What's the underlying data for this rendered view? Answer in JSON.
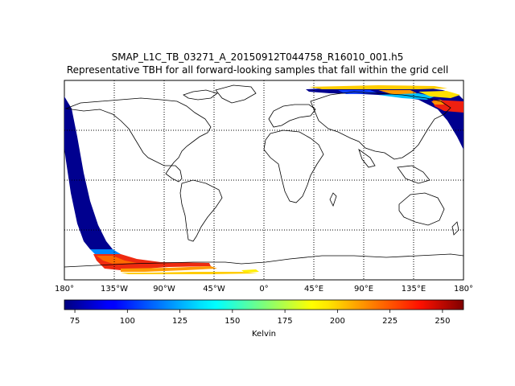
{
  "figure": {
    "title_line1": "SMAP_L1C_TB_03271_A_20150912T044758_R16010_001.h5",
    "title_line2": "Representative TBH for all forward-looking samples that fall within the grid cell"
  },
  "map": {
    "projection": "cylindrical",
    "lon_range": [
      -180,
      180
    ],
    "lat_range": [
      -90,
      90
    ],
    "gridlines": {
      "longitudes": [
        -135,
        -90,
        -45,
        0,
        45,
        90,
        135
      ],
      "latitudes": [
        -45,
        0,
        45
      ],
      "style": "dotted"
    },
    "lon_tick_labels": [
      {
        "lon": -180,
        "label": "180°"
      },
      {
        "lon": -135,
        "label": "135°W"
      },
      {
        "lon": -90,
        "label": "90°W"
      },
      {
        "lon": -45,
        "label": "45°W"
      },
      {
        "lon": 0,
        "label": "0°"
      },
      {
        "lon": 45,
        "label": "45°E"
      },
      {
        "lon": 90,
        "label": "90°E"
      },
      {
        "lon": 135,
        "label": "135°E"
      },
      {
        "lon": 180,
        "label": "180°"
      }
    ],
    "data_swaths": [
      {
        "description": "descending swath over eastern Pacific",
        "values_kelvin": "~75-90 over ocean, ~220-260 over Antarctica"
      },
      {
        "description": "swath over Arctic / northern Asia",
        "values_kelvin": "~75-90 over ocean, ~200-260 over land/ice"
      }
    ]
  },
  "colorbar": {
    "colormap": "jet",
    "range": [
      70,
      260
    ],
    "ticks": [
      75,
      100,
      125,
      150,
      175,
      200,
      225,
      250
    ],
    "label": "Kelvin"
  }
}
